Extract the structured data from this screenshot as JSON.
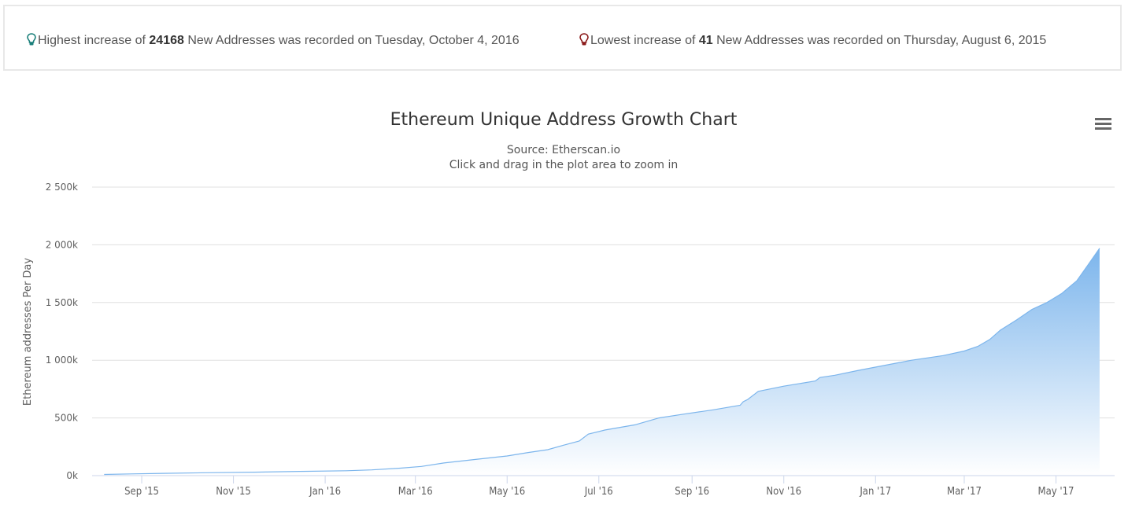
{
  "stats": {
    "high": {
      "prefix": "Highest increase of ",
      "value": "24168",
      "suffix": " New Addresses was recorded on Tuesday, October 4, 2016",
      "icon": "lightbulb-icon",
      "color": "#1a7f7a"
    },
    "low": {
      "prefix": "Lowest increase of ",
      "value": "41",
      "suffix": " New Addresses was recorded on Thursday, August 6, 2015",
      "icon": "lightbulb-icon",
      "color": "#8b1a1a"
    }
  },
  "menu_icon": "hamburger-menu-icon",
  "chart_data": {
    "type": "area",
    "title": "Ethereum Unique Address Growth Chart",
    "subtitle": "Source: Etherscan.io",
    "subtitle2": "Click and drag in the plot area to zoom in",
    "xlabel": "",
    "ylabel": "Ethereum addresses Per Day",
    "ylim": [
      0,
      2500000
    ],
    "yticks": [
      0,
      500000,
      1000000,
      1500000,
      2000000,
      2500000
    ],
    "ytick_labels": [
      "0k",
      "500k",
      "1 000k",
      "1 500k",
      "2 000k",
      "2 500k"
    ],
    "xlim": [
      "2015-07-30",
      "2017-06-09"
    ],
    "xticks": [
      "2015-09-01",
      "2015-11-01",
      "2016-01-01",
      "2016-03-01",
      "2016-05-01",
      "2016-07-01",
      "2016-09-01",
      "2016-11-01",
      "2017-01-01",
      "2017-03-01",
      "2017-05-01"
    ],
    "xtick_labels": [
      "Sep '15",
      "Nov '15",
      "Jan '16",
      "Mar '16",
      "May '16",
      "Jul '16",
      "Sep '16",
      "Nov '16",
      "Jan '17",
      "Mar '17",
      "May '17"
    ],
    "grid": true,
    "legend": "none",
    "colors": {
      "line": "#7cb5ec",
      "fill_top": "#7cb5ec",
      "fill_bottom": "#ffffff"
    },
    "series": [
      {
        "name": "Ethereum addresses",
        "x": [
          "2015-08-07",
          "2015-08-25",
          "2015-09-15",
          "2015-10-15",
          "2015-11-15",
          "2015-12-15",
          "2016-01-15",
          "2016-02-01",
          "2016-02-20",
          "2016-03-05",
          "2016-03-20",
          "2016-04-10",
          "2016-05-01",
          "2016-05-15",
          "2016-05-28",
          "2016-06-08",
          "2016-06-18",
          "2016-06-24",
          "2016-07-05",
          "2016-07-25",
          "2016-08-10",
          "2016-08-25",
          "2016-09-15",
          "2016-10-03",
          "2016-10-05",
          "2016-10-08",
          "2016-10-15",
          "2016-11-01",
          "2016-11-22",
          "2016-11-25",
          "2016-12-05",
          "2016-12-20",
          "2017-01-05",
          "2017-01-25",
          "2017-02-15",
          "2017-03-01",
          "2017-03-10",
          "2017-03-18",
          "2017-03-25",
          "2017-04-05",
          "2017-04-15",
          "2017-04-25",
          "2017-05-05",
          "2017-05-15",
          "2017-05-22",
          "2017-05-30"
        ],
        "values": [
          10000,
          15000,
          20000,
          25000,
          30000,
          37000,
          42000,
          50000,
          65000,
          80000,
          110000,
          140000,
          170000,
          200000,
          225000,
          265000,
          300000,
          360000,
          395000,
          440000,
          500000,
          530000,
          570000,
          610000,
          640000,
          660000,
          730000,
          775000,
          820000,
          850000,
          870000,
          910000,
          950000,
          1000000,
          1040000,
          1080000,
          1120000,
          1180000,
          1260000,
          1350000,
          1440000,
          1500000,
          1580000,
          1690000,
          1820000,
          1970000
        ]
      }
    ]
  }
}
